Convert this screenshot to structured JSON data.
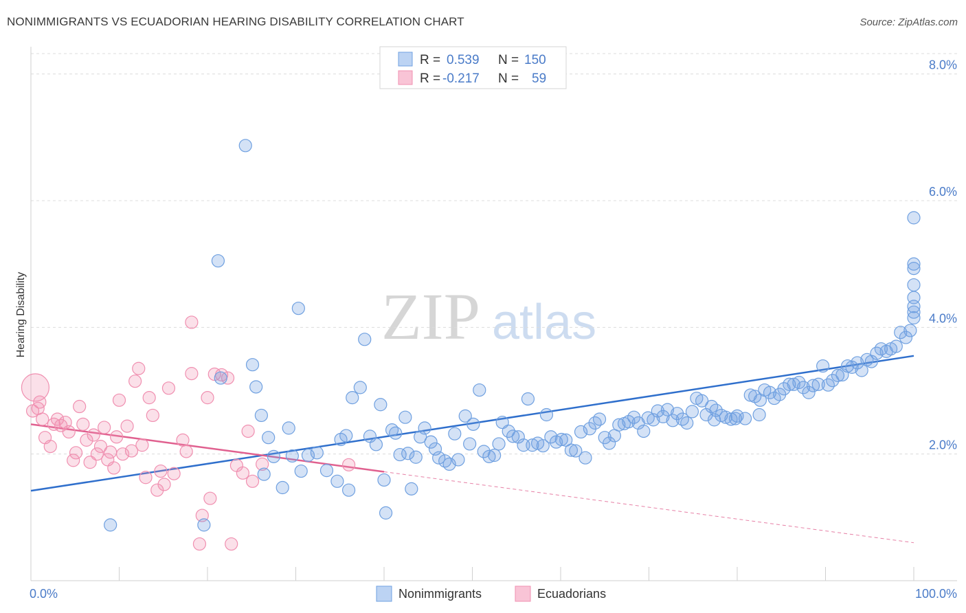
{
  "title": "NONIMMIGRANTS VS ECUADORIAN HEARING DISABILITY CORRELATION CHART",
  "source": "Source: ZipAtlas.com",
  "watermark": {
    "zip": "ZIP",
    "atlas": "atlas"
  },
  "chart_data": {
    "type": "scatter",
    "xlabel": "",
    "ylabel": "Hearing Disability",
    "xlim": [
      0,
      100
    ],
    "ylim": [
      0,
      8.3
    ],
    "x_tick_labels": [
      "0.0%",
      "100.0%"
    ],
    "y_ticks": [
      2.0,
      4.0,
      6.0,
      8.0
    ],
    "y_tick_labels": [
      "2.0%",
      "4.0%",
      "6.0%",
      "8.0%"
    ],
    "grid": true,
    "legend_position": "top-center",
    "legend": {
      "rows": [
        {
          "r_label": "R =",
          "r_value": "0.539",
          "n_label": "N =",
          "n_value": "150"
        },
        {
          "r_label": "R =",
          "r_value": "-0.217",
          "n_label": "N =",
          "n_value": "59"
        }
      ]
    },
    "series": [
      {
        "name": "Nonimmigrants",
        "color": "#6fa0e0",
        "trend_color": "#2f6fcc",
        "trend": {
          "x": [
            0,
            100
          ],
          "y": [
            1.42,
            3.55
          ]
        },
        "points": [
          [
            9.0,
            0.88
          ],
          [
            19.6,
            0.88
          ],
          [
            21.2,
            5.05
          ],
          [
            21.5,
            3.2
          ],
          [
            24.3,
            6.87
          ],
          [
            25.1,
            3.41
          ],
          [
            25.5,
            3.06
          ],
          [
            26.1,
            2.61
          ],
          [
            26.4,
            1.68
          ],
          [
            26.9,
            2.26
          ],
          [
            27.5,
            1.96
          ],
          [
            28.5,
            1.47
          ],
          [
            29.2,
            2.41
          ],
          [
            29.6,
            1.97
          ],
          [
            30.3,
            4.3
          ],
          [
            30.6,
            1.73
          ],
          [
            31.4,
            1.98
          ],
          [
            32.4,
            2.02
          ],
          [
            33.5,
            1.74
          ],
          [
            34.7,
            1.57
          ],
          [
            35.1,
            2.23
          ],
          [
            35.7,
            2.29
          ],
          [
            36.0,
            1.43
          ],
          [
            36.4,
            2.89
          ],
          [
            37.3,
            3.05
          ],
          [
            37.8,
            3.81
          ],
          [
            38.4,
            2.28
          ],
          [
            39.1,
            2.15
          ],
          [
            39.6,
            2.78
          ],
          [
            40.0,
            1.59
          ],
          [
            40.2,
            1.07
          ],
          [
            40.9,
            2.38
          ],
          [
            41.3,
            2.33
          ],
          [
            41.8,
            1.99
          ],
          [
            42.4,
            2.58
          ],
          [
            42.7,
            2.01
          ],
          [
            43.1,
            1.45
          ],
          [
            43.6,
            1.95
          ],
          [
            44.1,
            2.27
          ],
          [
            44.6,
            2.41
          ],
          [
            45.3,
            2.19
          ],
          [
            45.8,
            2.08
          ],
          [
            46.2,
            1.94
          ],
          [
            46.9,
            1.89
          ],
          [
            47.4,
            1.84
          ],
          [
            48.0,
            2.32
          ],
          [
            48.4,
            1.91
          ],
          [
            49.2,
            2.6
          ],
          [
            49.7,
            2.16
          ],
          [
            50.1,
            2.47
          ],
          [
            50.8,
            3.01
          ],
          [
            51.3,
            2.04
          ],
          [
            51.9,
            1.96
          ],
          [
            52.5,
            1.98
          ],
          [
            53.0,
            2.16
          ],
          [
            53.4,
            2.5
          ],
          [
            54.1,
            2.36
          ],
          [
            54.6,
            2.28
          ],
          [
            55.2,
            2.27
          ],
          [
            55.8,
            2.14
          ],
          [
            56.3,
            2.87
          ],
          [
            56.8,
            2.14
          ],
          [
            57.4,
            2.17
          ],
          [
            58.0,
            2.13
          ],
          [
            58.4,
            2.62
          ],
          [
            58.9,
            2.27
          ],
          [
            59.5,
            2.19
          ],
          [
            60.1,
            2.23
          ],
          [
            60.6,
            2.22
          ],
          [
            61.2,
            2.06
          ],
          [
            61.7,
            2.05
          ],
          [
            62.3,
            2.35
          ],
          [
            62.8,
            1.94
          ],
          [
            63.3,
            2.4
          ],
          [
            63.9,
            2.49
          ],
          [
            64.4,
            2.55
          ],
          [
            65.0,
            2.26
          ],
          [
            65.5,
            2.17
          ],
          [
            66.1,
            2.29
          ],
          [
            66.6,
            2.46
          ],
          [
            67.2,
            2.48
          ],
          [
            67.7,
            2.51
          ],
          [
            68.3,
            2.58
          ],
          [
            68.8,
            2.49
          ],
          [
            69.4,
            2.36
          ],
          [
            69.9,
            2.57
          ],
          [
            70.5,
            2.54
          ],
          [
            71.0,
            2.68
          ],
          [
            71.6,
            2.59
          ],
          [
            72.1,
            2.7
          ],
          [
            72.7,
            2.53
          ],
          [
            73.2,
            2.64
          ],
          [
            73.8,
            2.55
          ],
          [
            74.3,
            2.49
          ],
          [
            74.9,
            2.67
          ],
          [
            75.4,
            2.88
          ],
          [
            76.0,
            2.84
          ],
          [
            76.5,
            2.62
          ],
          [
            77.1,
            2.75
          ],
          [
            77.6,
            2.69
          ],
          [
            78.2,
            2.61
          ],
          [
            78.7,
            2.58
          ],
          [
            79.3,
            2.55
          ],
          [
            79.8,
            2.56
          ],
          [
            80.9,
            2.56
          ],
          [
            81.5,
            2.93
          ],
          [
            82.0,
            2.91
          ],
          [
            82.6,
            2.85
          ],
          [
            83.1,
            3.01
          ],
          [
            83.7,
            2.97
          ],
          [
            84.2,
            2.88
          ],
          [
            84.8,
            2.94
          ],
          [
            85.3,
            3.03
          ],
          [
            85.9,
            3.1
          ],
          [
            86.4,
            3.1
          ],
          [
            87.0,
            3.13
          ],
          [
            87.5,
            3.05
          ],
          [
            88.1,
            2.97
          ],
          [
            88.6,
            3.08
          ],
          [
            89.2,
            3.1
          ],
          [
            89.7,
            3.39
          ],
          [
            90.3,
            3.09
          ],
          [
            90.8,
            3.16
          ],
          [
            91.4,
            3.24
          ],
          [
            91.9,
            3.25
          ],
          [
            92.5,
            3.39
          ],
          [
            93.0,
            3.37
          ],
          [
            93.6,
            3.44
          ],
          [
            94.1,
            3.32
          ],
          [
            94.7,
            3.49
          ],
          [
            95.2,
            3.46
          ],
          [
            95.8,
            3.59
          ],
          [
            96.3,
            3.66
          ],
          [
            96.9,
            3.62
          ],
          [
            97.4,
            3.66
          ],
          [
            98.0,
            3.7
          ],
          [
            98.5,
            3.92
          ],
          [
            99.1,
            3.84
          ],
          [
            99.6,
            3.95
          ],
          [
            100.2,
            4.15
          ],
          [
            100.7,
            4.24
          ],
          [
            101.3,
            4.33
          ],
          [
            101.8,
            4.47
          ],
          [
            102.4,
            4.67
          ],
          [
            102.9,
            4.93
          ],
          [
            103.4,
            5.0
          ],
          [
            104.0,
            5.73
          ],
          [
            82.5,
            2.62
          ],
          [
            80.0,
            2.6
          ],
          [
            77.4,
            2.54
          ]
        ]
      },
      {
        "name": "Ecuadorians",
        "color": "#f08fb0",
        "trend_color": "#e0608f",
        "trend": {
          "x": [
            0,
            40
          ],
          "y": [
            2.47,
            1.72
          ]
        },
        "trend_ext": {
          "x": [
            40,
            100
          ],
          "y": [
            1.72,
            0.6
          ]
        },
        "points": [
          [
            0.2,
            2.68
          ],
          [
            0.8,
            2.72
          ],
          [
            1.3,
            2.55
          ],
          [
            1.6,
            2.26
          ],
          [
            2.2,
            2.12
          ],
          [
            2.6,
            2.47
          ],
          [
            3.0,
            2.55
          ],
          [
            3.4,
            2.45
          ],
          [
            3.9,
            2.5
          ],
          [
            4.3,
            2.35
          ],
          [
            4.8,
            1.9
          ],
          [
            5.1,
            2.02
          ],
          [
            5.5,
            2.75
          ],
          [
            5.9,
            2.47
          ],
          [
            6.3,
            2.22
          ],
          [
            6.7,
            1.87
          ],
          [
            7.1,
            2.3
          ],
          [
            7.5,
            2.0
          ],
          [
            7.9,
            2.12
          ],
          [
            8.3,
            2.42
          ],
          [
            8.7,
            1.91
          ],
          [
            9.0,
            2.03
          ],
          [
            9.4,
            1.78
          ],
          [
            9.7,
            2.27
          ],
          [
            10.0,
            2.85
          ],
          [
            10.4,
            2.0
          ],
          [
            10.9,
            2.44
          ],
          [
            11.4,
            2.05
          ],
          [
            11.8,
            3.15
          ],
          [
            12.2,
            3.35
          ],
          [
            12.6,
            2.14
          ],
          [
            13.0,
            1.63
          ],
          [
            13.4,
            2.89
          ],
          [
            13.8,
            2.61
          ],
          [
            14.3,
            1.43
          ],
          [
            14.7,
            1.73
          ],
          [
            15.1,
            1.52
          ],
          [
            15.6,
            3.04
          ],
          [
            16.2,
            1.69
          ],
          [
            17.2,
            2.22
          ],
          [
            17.6,
            2.04
          ],
          [
            18.2,
            4.08
          ],
          [
            18.2,
            3.27
          ],
          [
            19.1,
            0.58
          ],
          [
            19.4,
            1.03
          ],
          [
            20.0,
            2.89
          ],
          [
            20.3,
            1.3
          ],
          [
            20.8,
            3.26
          ],
          [
            21.6,
            3.25
          ],
          [
            22.3,
            3.2
          ],
          [
            22.7,
            0.58
          ],
          [
            23.3,
            1.82
          ],
          [
            24.0,
            1.7
          ],
          [
            24.6,
            2.36
          ],
          [
            25.1,
            1.57
          ],
          [
            26.2,
            1.84
          ],
          [
            0.5,
            3.05
          ],
          [
            1.0,
            2.82
          ],
          [
            36.0,
            1.83
          ]
        ]
      }
    ]
  }
}
